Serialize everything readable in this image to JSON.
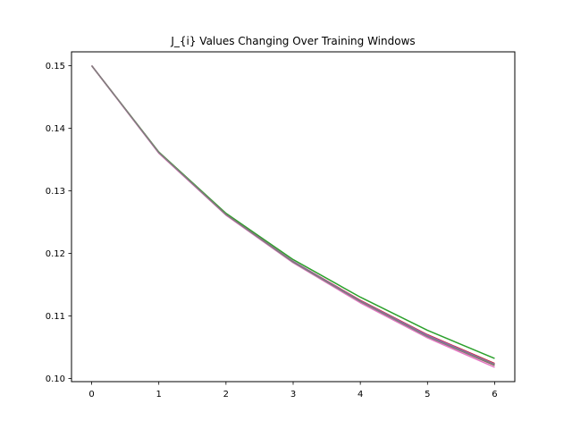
{
  "chart_data": {
    "type": "line",
    "title": "J_{i} Values Changing Over Training Windows",
    "xlabel": "",
    "ylabel": "",
    "xlim": [
      -0.3,
      6.3
    ],
    "ylim": [
      0.0995,
      0.1522
    ],
    "x_ticks": [
      "0",
      "1",
      "2",
      "3",
      "4",
      "5",
      "6"
    ],
    "y_ticks": [
      "0.10",
      "0.11",
      "0.12",
      "0.13",
      "0.14",
      "0.15"
    ],
    "x": [
      0,
      1,
      2,
      3,
      4,
      5,
      6
    ],
    "grid": false,
    "legend": "none",
    "series": [
      {
        "color": "#2ca02c",
        "values": [
          0.15,
          0.1362,
          0.1264,
          0.119,
          0.113,
          0.1077,
          0.1032
        ]
      },
      {
        "color": "#d62728",
        "values": [
          0.15,
          0.1361,
          0.1262,
          0.1187,
          0.1125,
          0.107,
          0.1024
        ]
      },
      {
        "color": "#9467bd",
        "values": [
          0.15,
          0.1361,
          0.1262,
          0.1187,
          0.1124,
          0.1069,
          0.1023
        ]
      },
      {
        "color": "#8c564b",
        "values": [
          0.15,
          0.1361,
          0.1262,
          0.1186,
          0.1123,
          0.1067,
          0.1021
        ]
      },
      {
        "color": "#e377c2",
        "values": [
          0.15,
          0.136,
          0.1261,
          0.1185,
          0.1121,
          0.1065,
          0.1018
        ]
      },
      {
        "color": "#7f7f7f",
        "values": [
          0.15,
          0.1361,
          0.1262,
          0.1186,
          0.1123,
          0.1067,
          0.1022
        ]
      }
    ]
  }
}
